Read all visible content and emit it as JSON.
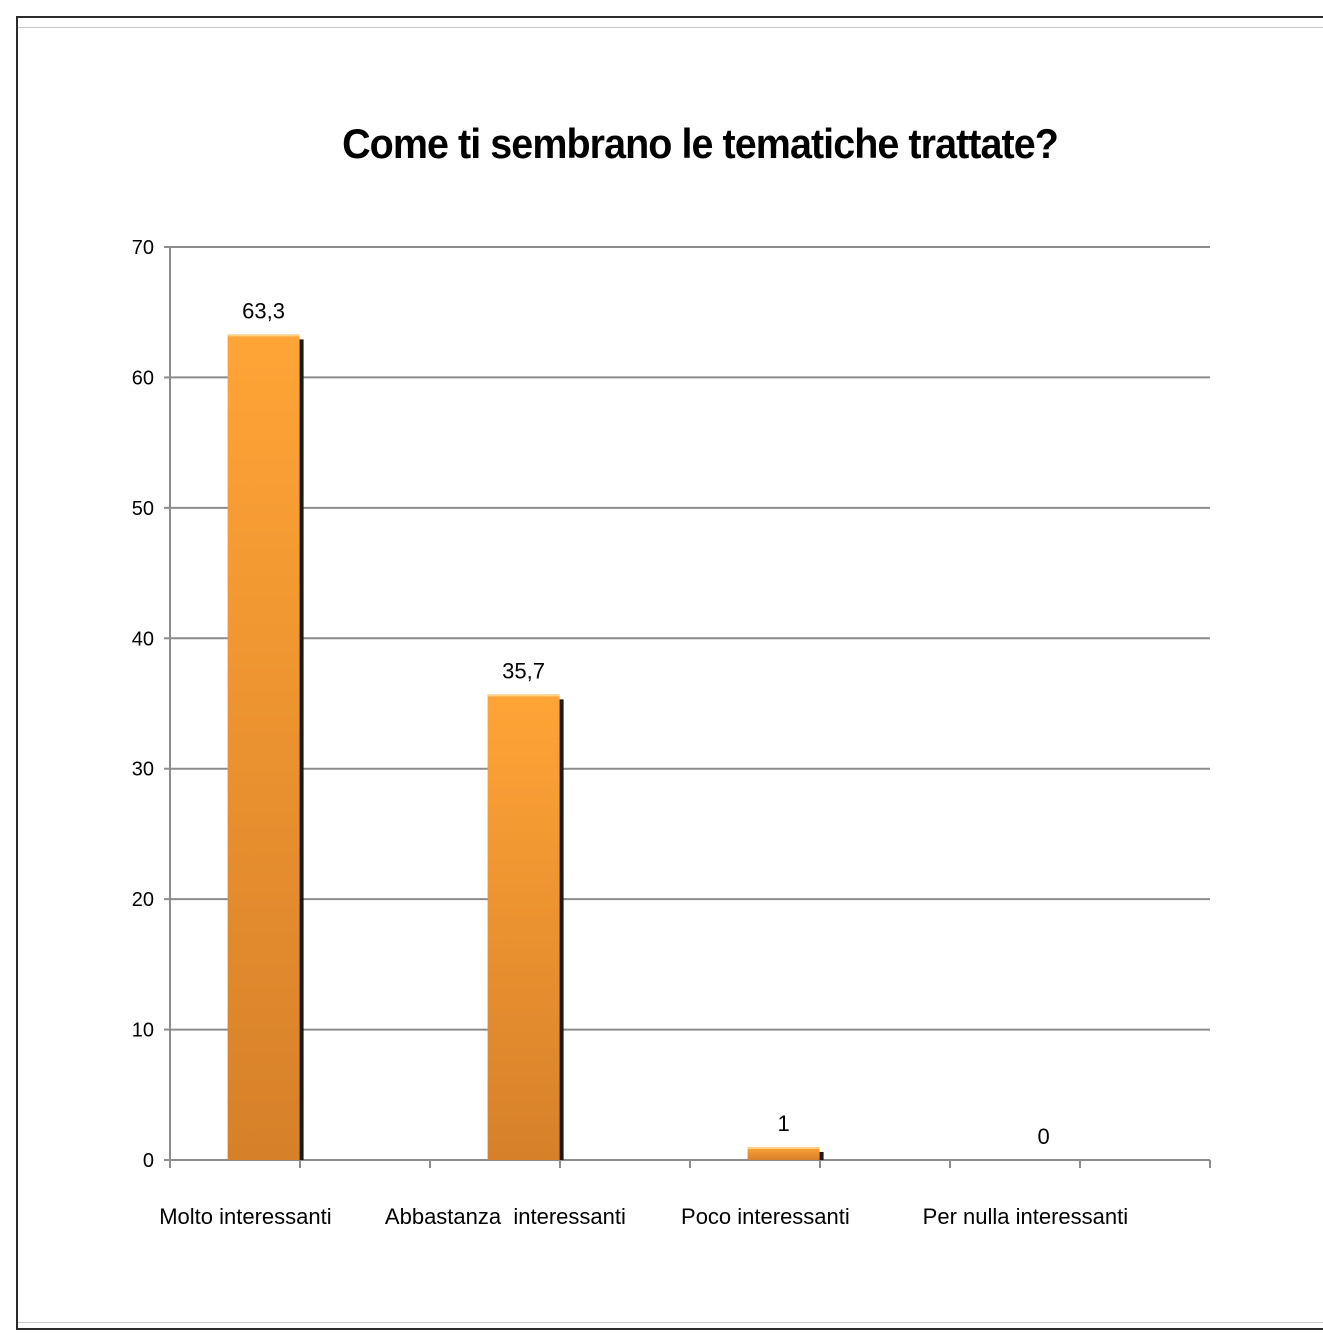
{
  "chart_data": {
    "type": "bar",
    "title": "Come ti sembrano le tematiche trattate?",
    "xlabel": "",
    "ylabel": "",
    "categories": [
      "Molto interessanti",
      "Abbastanza  interessanti",
      "Poco interessanti",
      "Per nulla interessanti"
    ],
    "values": [
      63.3,
      35.7,
      1,
      0
    ],
    "data_labels": [
      "63,3",
      "35,7",
      "1",
      "0"
    ],
    "ylim": [
      0,
      70
    ],
    "yticks": [
      0,
      10,
      20,
      30,
      40,
      50,
      60,
      70
    ],
    "grid": true,
    "legend": "none",
    "colors": {
      "bar_top": "#ffa436",
      "bar_bottom": "#d6802a",
      "bar_shadow": "#1a1a1a",
      "grid": "#8c8c8c",
      "axis": "#8c8c8c"
    }
  }
}
